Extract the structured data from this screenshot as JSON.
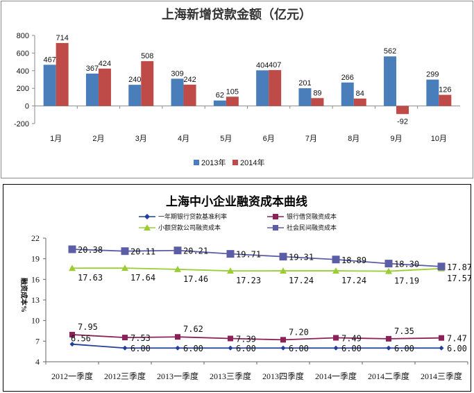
{
  "chart_data": [
    {
      "type": "bar",
      "title": "上海新增贷款金额（亿元）",
      "categories": [
        "1月",
        "2月",
        "3月",
        "4月",
        "5月",
        "6月",
        "7月",
        "8月",
        "9月",
        "10月"
      ],
      "series": [
        {
          "name": "2013年",
          "color": "#4a7ebb",
          "values": [
            467,
            367,
            240,
            309,
            62,
            404,
            201,
            266,
            562,
            299
          ]
        },
        {
          "name": "2014年",
          "color": "#be4b48",
          "values": [
            714,
            424,
            508,
            242,
            105,
            407,
            89,
            84,
            -92,
            126
          ]
        }
      ],
      "ylim": [
        -200,
        800
      ],
      "yticks": [
        "800",
        "600",
        "400",
        "200",
        "0",
        "-200"
      ],
      "negative_label_color": "#c00000",
      "legend": "bottom",
      "grid": false
    },
    {
      "type": "line",
      "title": "上海中小企业融资成本曲线",
      "ylabel": "融资成本%",
      "categories": [
        "2012一季度",
        "2012三季度",
        "2013一季度",
        "2013三季度",
        "2013四季度",
        "2014一季度",
        "2014二季度",
        "2014三季度"
      ],
      "series": [
        {
          "name": "一年期银行贷款基准利率",
          "color": "#1f3f9a",
          "marker": "diamond",
          "values": [
            6.56,
            6.0,
            6.0,
            6.0,
            6.0,
            6.0,
            6.0,
            6.0
          ],
          "labels": [
            "6.56",
            "6.00",
            "6.00",
            "6.00",
            "6.00",
            "6.00",
            "6.00",
            "6.00"
          ]
        },
        {
          "name": "银行借贷融资成本",
          "color": "#8b2257",
          "marker": "square",
          "values": [
            7.95,
            7.53,
            7.62,
            7.39,
            7.2,
            7.49,
            7.35,
            7.47
          ],
          "labels": [
            "7.95",
            "7.53",
            "7.62",
            "7.39",
            "7.20",
            "7.49",
            "7.35",
            "7.47"
          ]
        },
        {
          "name": "小额贷款公司融资成本",
          "color": "#9acd32",
          "marker": "triangle",
          "values": [
            17.63,
            17.64,
            17.46,
            17.23,
            17.24,
            17.24,
            17.19,
            17.57
          ],
          "labels": [
            "17.63",
            "17.64",
            "17.46",
            "17.23",
            "17.24",
            "17.24",
            "17.19",
            "17.57"
          ]
        },
        {
          "name": "社会民间融资成本",
          "color": "#5b5ea6",
          "marker": "square",
          "values": [
            20.38,
            20.11,
            20.21,
            19.71,
            19.31,
            18.89,
            18.3,
            17.87
          ],
          "labels": [
            "20.38",
            "20.11",
            "20.21",
            "19.71",
            "19.31",
            "18.89",
            "18.30",
            "17.87"
          ]
        }
      ],
      "ylim": [
        4,
        22
      ],
      "yticks": [
        "22",
        "19",
        "16",
        "13",
        "10",
        "7",
        "4"
      ],
      "legend": "top",
      "grid": false
    }
  ]
}
